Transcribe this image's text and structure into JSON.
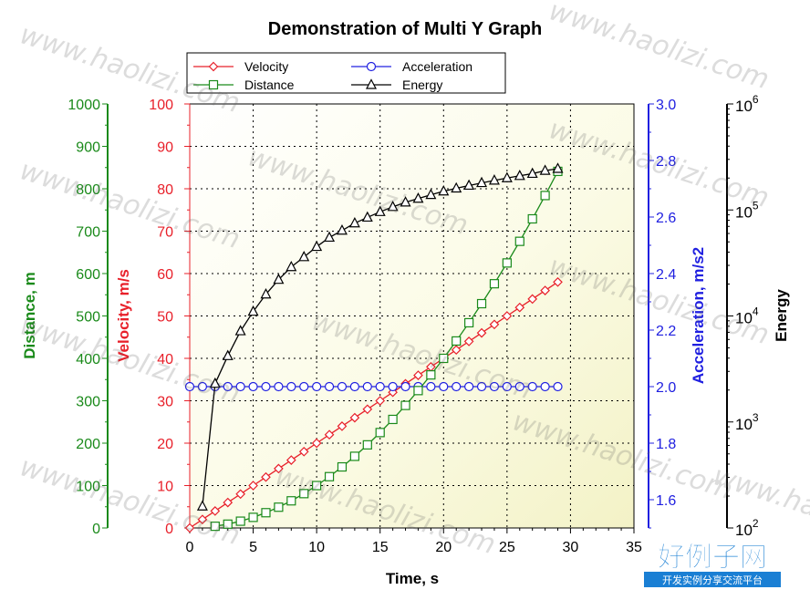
{
  "chart_data": {
    "type": "line",
    "title": "Demonstration of Multi Y Graph",
    "xlabel": "Time, s",
    "xlim": [
      0,
      35
    ],
    "xticks": [
      "0",
      "5",
      "10",
      "15",
      "20",
      "25",
      "30",
      "35"
    ],
    "grid": true,
    "legend_position": "top-center",
    "axes": {
      "distance": {
        "label": "Distance, m",
        "lim": [
          0,
          1000
        ],
        "ticks": [
          "0",
          "100",
          "200",
          "300",
          "400",
          "500",
          "600",
          "700",
          "800",
          "900",
          "1000"
        ],
        "color": "#1a8a1a"
      },
      "velocity": {
        "label": "Velocity, m/s",
        "lim": [
          0,
          100
        ],
        "ticks": [
          "0",
          "10",
          "20",
          "30",
          "40",
          "50",
          "60",
          "70",
          "80",
          "90",
          "100"
        ],
        "color": "#e8202a"
      },
      "acceleration": {
        "label": "Acceleration, m/s2",
        "lim": [
          1.5,
          3.0
        ],
        "ticks": [
          "1.6",
          "1.8",
          "2.0",
          "2.2",
          "2.4",
          "2.6",
          "2.8",
          "3.0"
        ],
        "color": "#2020e0"
      },
      "energy": {
        "label": "Energy",
        "lim": [
          100,
          1000000
        ],
        "scale": "log",
        "ticks": [
          {
            "base": "10",
            "exp": "2"
          },
          {
            "base": "10",
            "exp": "3"
          },
          {
            "base": "10",
            "exp": "4"
          },
          {
            "base": "10",
            "exp": "5"
          },
          {
            "base": "10",
            "exp": "6"
          }
        ],
        "color": "#000000"
      }
    },
    "x": [
      0,
      1,
      2,
      3,
      4,
      5,
      6,
      7,
      8,
      9,
      10,
      11,
      12,
      13,
      14,
      15,
      16,
      17,
      18,
      19,
      20,
      21,
      22,
      23,
      24,
      25,
      26,
      27,
      28,
      29
    ],
    "series": [
      {
        "name": "Velocity",
        "axis": "velocity",
        "color": "#e8202a",
        "marker": "diamond",
        "values": [
          0,
          2,
          4,
          6,
          8,
          10,
          12,
          14,
          16,
          18,
          20,
          22,
          24,
          26,
          28,
          30,
          32,
          34,
          36,
          38,
          40,
          42,
          44,
          46,
          48,
          50,
          52,
          54,
          56,
          58
        ]
      },
      {
        "name": "Acceleration",
        "axis": "acceleration",
        "color": "#2020e0",
        "marker": "circle",
        "values": [
          2,
          2,
          2,
          2,
          2,
          2,
          2,
          2,
          2,
          2,
          2,
          2,
          2,
          2,
          2,
          2,
          2,
          2,
          2,
          2,
          2,
          2,
          2,
          2,
          2,
          2,
          2,
          2,
          2,
          2
        ]
      },
      {
        "name": "Distance",
        "axis": "distance",
        "color": "#1a8a1a",
        "marker": "square",
        "x": [
          2,
          3,
          4,
          5,
          6,
          7,
          8,
          9,
          10,
          11,
          12,
          13,
          14,
          15,
          16,
          17,
          18,
          19,
          20,
          21,
          22,
          23,
          24,
          25,
          26,
          27,
          28,
          29
        ],
        "values": [
          4,
          9,
          16,
          25,
          36,
          49,
          64,
          81,
          100,
          121,
          144,
          169,
          196,
          225,
          256,
          289,
          324,
          361,
          400,
          441,
          484,
          529,
          576,
          625,
          676,
          729,
          784,
          841
        ]
      },
      {
        "name": "Energy",
        "axis": "energy",
        "color": "#000000",
        "marker": "triangle",
        "x": [
          1,
          2,
          3,
          4,
          5,
          6,
          7,
          8,
          9,
          10,
          11,
          12,
          13,
          14,
          15,
          16,
          17,
          18,
          19,
          20,
          21,
          22,
          23,
          24,
          25,
          26,
          27,
          28,
          29
        ],
        "values": [
          160,
          2300,
          4200,
          7200,
          11000,
          16000,
          22000,
          29000,
          36000,
          45000,
          55000,
          64000,
          75000,
          85000,
          96000,
          107000,
          118000,
          128000,
          139000,
          150000,
          160000,
          170000,
          180000,
          190000,
          200000,
          210000,
          220000,
          235000,
          245000
        ]
      }
    ]
  },
  "watermark": {
    "text": "www.haolizi.com",
    "logo_text": "好例子网",
    "logo_subtext": "开发实例分享交流平台"
  }
}
